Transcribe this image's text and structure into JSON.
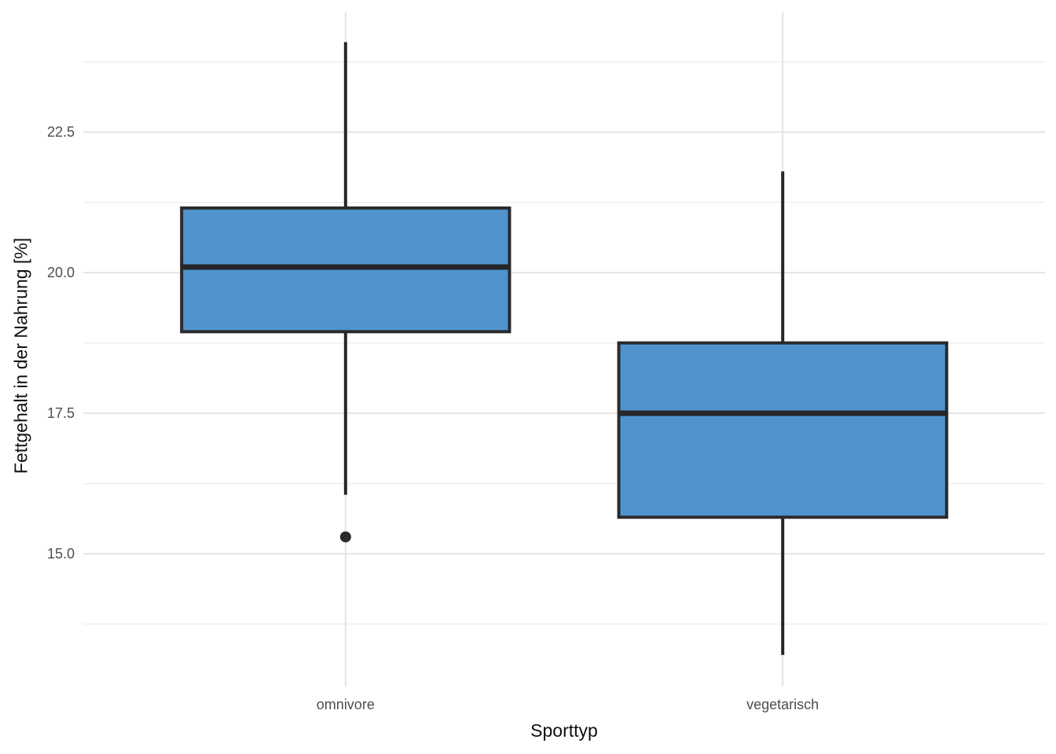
{
  "chart_data": {
    "type": "boxplot",
    "title": "",
    "xlabel": "Sporttyp",
    "ylabel": "Fettgehalt in der Nahrung [%]",
    "categories": [
      "omnivore",
      "vegetarisch"
    ],
    "series": [
      {
        "category": "omnivore",
        "whisker_low": 16.05,
        "q1": 18.95,
        "median": 20.1,
        "q3": 21.15,
        "whisker_high": 24.1,
        "outliers": [
          15.3
        ]
      },
      {
        "category": "vegetarisch",
        "whisker_low": 13.2,
        "q1": 15.65,
        "median": 17.5,
        "q3": 18.75,
        "whisker_high": 21.8,
        "outliers": []
      }
    ],
    "y_ticks": [
      {
        "value": 15.0,
        "label": "15.0"
      },
      {
        "value": 17.5,
        "label": "17.5"
      },
      {
        "value": 20.0,
        "label": "20.0"
      },
      {
        "value": 22.5,
        "label": "22.5"
      }
    ],
    "y_minor_ticks": [
      13.75,
      16.25,
      18.75,
      21.25,
      23.75
    ],
    "ylim": [
      12.64,
      24.64
    ],
    "grid": "horizontal major+minor, vertical major at categories",
    "legend": "none",
    "colors": {
      "box_fill": "#4F94CD",
      "box_stroke": "#2A2A2C",
      "median_stroke": "#26262A",
      "whisker_stroke": "#26262A",
      "outlier_fill": "#2A2A2C",
      "grid_major": "#E4E4E4",
      "grid_minor": "#EFEFEF",
      "tick_label": "#4D4D4D",
      "axis_title": "#111111",
      "background": "#FFFFFF"
    }
  }
}
